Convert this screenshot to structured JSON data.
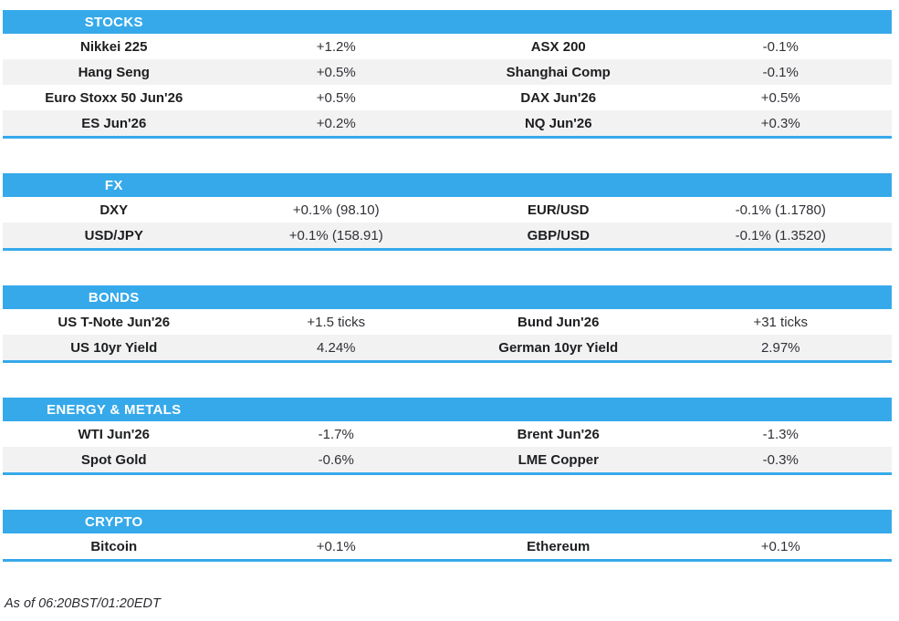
{
  "colors": {
    "accent": "#36a9ea",
    "row_alt": "#f2f2f3",
    "header_text": "#ffffff",
    "name_text": "#1d1e20",
    "value_text": "#303136"
  },
  "sections": [
    {
      "title": "STOCKS",
      "rows": [
        {
          "left_name": "Nikkei 225",
          "left_value": "+1.2%",
          "right_name": "ASX 200",
          "right_value": "-0.1%"
        },
        {
          "left_name": "Hang Seng",
          "left_value": "+0.5%",
          "right_name": "Shanghai Comp",
          "right_value": "-0.1%"
        },
        {
          "left_name": "Euro Stoxx 50 Jun'26",
          "left_value": "+0.5%",
          "right_name": "DAX Jun'26",
          "right_value": "+0.5%"
        },
        {
          "left_name": "ES Jun'26",
          "left_value": "+0.2%",
          "right_name": "NQ Jun'26",
          "right_value": "+0.3%"
        }
      ]
    },
    {
      "title": "FX",
      "rows": [
        {
          "left_name": "DXY",
          "left_value": "+0.1% (98.10)",
          "right_name": "EUR/USD",
          "right_value": "-0.1% (1.1780)"
        },
        {
          "left_name": "USD/JPY",
          "left_value": "+0.1% (158.91)",
          "right_name": "GBP/USD",
          "right_value": "-0.1% (1.3520)"
        }
      ]
    },
    {
      "title": "BONDS",
      "rows": [
        {
          "left_name": "US T-Note Jun'26",
          "left_value": "+1.5 ticks",
          "right_name": "Bund Jun'26",
          "right_value": "+31 ticks"
        },
        {
          "left_name": "US 10yr Yield",
          "left_value": "4.24%",
          "right_name": "German 10yr Yield",
          "right_value": "2.97%"
        }
      ]
    },
    {
      "title": "ENERGY & METALS",
      "rows": [
        {
          "left_name": "WTI Jun'26",
          "left_value": "-1.7%",
          "right_name": "Brent Jun'26",
          "right_value": "-1.3%"
        },
        {
          "left_name": "Spot Gold",
          "left_value": "-0.6%",
          "right_name": "LME Copper",
          "right_value": "-0.3%"
        }
      ]
    },
    {
      "title": "CRYPTO",
      "rows": [
        {
          "left_name": "Bitcoin",
          "left_value": "+0.1%",
          "right_name": "Ethereum",
          "right_value": "+0.1%"
        }
      ]
    }
  ],
  "footer": {
    "as_of": "As of 06:20BST/01:20EDT"
  }
}
